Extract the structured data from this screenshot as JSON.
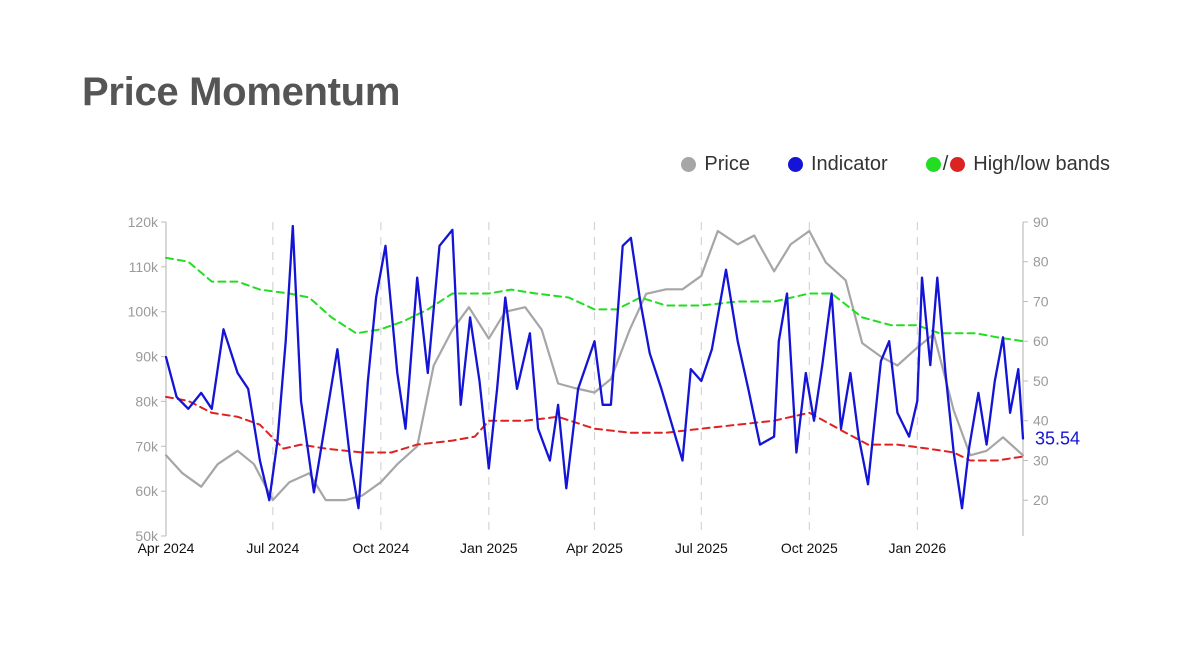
{
  "title": "Price Momentum",
  "legend": {
    "price": "Price",
    "indicator": "Indicator",
    "bands_sep": "/",
    "bands": "High/low bands"
  },
  "colors": {
    "price": "#a6a6a6",
    "indicator": "#1414d6",
    "high_band": "#22dd22",
    "low_band": "#dd2222",
    "title": "#555555"
  },
  "chart_data": {
    "type": "line",
    "x_type": "date",
    "x_range": [
      "2024-04-01",
      "2026-04-01"
    ],
    "x_ticks": [
      {
        "date": "2024-04-01",
        "label": "Apr 2024"
      },
      {
        "date": "2024-07-01",
        "label": "Jul 2024"
      },
      {
        "date": "2024-10-01",
        "label": "Oct 2024"
      },
      {
        "date": "2025-01-01",
        "label": "Jan 2025"
      },
      {
        "date": "2025-04-01",
        "label": "Apr 2025"
      },
      {
        "date": "2025-07-01",
        "label": "Jul 2025"
      },
      {
        "date": "2025-10-01",
        "label": "Oct 2025"
      },
      {
        "date": "2026-01-01",
        "label": "Jan 2026"
      }
    ],
    "y_left": {
      "range": [
        50000,
        120000
      ],
      "ticks": [
        {
          "value": 50000,
          "label": "50k"
        },
        {
          "value": 60000,
          "label": "60k"
        },
        {
          "value": 70000,
          "label": "70k"
        },
        {
          "value": 80000,
          "label": "80k"
        },
        {
          "value": 90000,
          "label": "90k"
        },
        {
          "value": 100000,
          "label": "100k"
        },
        {
          "value": 110000,
          "label": "110k"
        },
        {
          "value": 120000,
          "label": "120k"
        }
      ]
    },
    "y_right": {
      "range": [
        11,
        90
      ],
      "ticks": [
        {
          "value": 20,
          "label": "20"
        },
        {
          "value": 30,
          "label": "30"
        },
        {
          "value": 40,
          "label": "40"
        },
        {
          "value": 50,
          "label": "50"
        },
        {
          "value": 60,
          "label": "60"
        },
        {
          "value": 70,
          "label": "70"
        },
        {
          "value": 80,
          "label": "80"
        },
        {
          "value": 90,
          "label": "90"
        }
      ]
    },
    "vertical_grid": "dashed at x ticks",
    "series": [
      {
        "name": "Price",
        "axis": "left",
        "points": [
          [
            "2024-04-01",
            68000
          ],
          [
            "2024-04-15",
            64000
          ],
          [
            "2024-05-01",
            61000
          ],
          [
            "2024-05-15",
            66000
          ],
          [
            "2024-06-01",
            69000
          ],
          [
            "2024-06-15",
            66000
          ],
          [
            "2024-07-01",
            58000
          ],
          [
            "2024-07-15",
            62000
          ],
          [
            "2024-08-01",
            64000
          ],
          [
            "2024-08-15",
            58000
          ],
          [
            "2024-09-01",
            58000
          ],
          [
            "2024-09-15",
            59000
          ],
          [
            "2024-10-01",
            62000
          ],
          [
            "2024-10-15",
            66000
          ],
          [
            "2024-11-01",
            70000
          ],
          [
            "2024-11-15",
            88000
          ],
          [
            "2024-12-01",
            96000
          ],
          [
            "2024-12-15",
            101000
          ],
          [
            "2025-01-01",
            94000
          ],
          [
            "2025-01-15",
            100000
          ],
          [
            "2025-02-01",
            101000
          ],
          [
            "2025-02-15",
            96000
          ],
          [
            "2025-03-01",
            84000
          ],
          [
            "2025-03-15",
            83000
          ],
          [
            "2025-04-01",
            82000
          ],
          [
            "2025-04-15",
            85000
          ],
          [
            "2025-05-01",
            96000
          ],
          [
            "2025-05-15",
            104000
          ],
          [
            "2025-06-01",
            105000
          ],
          [
            "2025-06-15",
            105000
          ],
          [
            "2025-07-01",
            108000
          ],
          [
            "2025-07-15",
            118000
          ],
          [
            "2025-08-01",
            115000
          ],
          [
            "2025-08-15",
            117000
          ],
          [
            "2025-09-01",
            109000
          ],
          [
            "2025-09-15",
            115000
          ],
          [
            "2025-10-01",
            118000
          ],
          [
            "2025-10-15",
            111000
          ],
          [
            "2025-11-01",
            107000
          ],
          [
            "2025-11-15",
            93000
          ],
          [
            "2025-12-01",
            90000
          ],
          [
            "2025-12-15",
            88000
          ],
          [
            "2026-01-01",
            92000
          ],
          [
            "2026-01-15",
            95000
          ],
          [
            "2026-02-01",
            78000
          ],
          [
            "2026-02-15",
            68000
          ],
          [
            "2026-03-01",
            69000
          ],
          [
            "2026-03-15",
            72000
          ],
          [
            "2026-04-01",
            68000
          ]
        ]
      },
      {
        "name": "Indicator",
        "axis": "right",
        "last_value_label": "35.54",
        "points": [
          [
            "2024-04-01",
            56
          ],
          [
            "2024-04-10",
            46
          ],
          [
            "2024-04-20",
            43
          ],
          [
            "2024-05-01",
            47
          ],
          [
            "2024-05-10",
            43
          ],
          [
            "2024-05-20",
            63
          ],
          [
            "2024-06-01",
            52
          ],
          [
            "2024-06-10",
            48
          ],
          [
            "2024-06-20",
            30
          ],
          [
            "2024-06-28",
            20
          ],
          [
            "2024-07-05",
            35
          ],
          [
            "2024-07-12",
            60
          ],
          [
            "2024-07-18",
            89
          ],
          [
            "2024-07-25",
            45
          ],
          [
            "2024-08-05",
            22
          ],
          [
            "2024-08-15",
            40
          ],
          [
            "2024-08-25",
            58
          ],
          [
            "2024-09-05",
            30
          ],
          [
            "2024-09-12",
            18
          ],
          [
            "2024-09-20",
            50
          ],
          [
            "2024-09-27",
            71
          ],
          [
            "2024-10-05",
            84
          ],
          [
            "2024-10-15",
            52
          ],
          [
            "2024-10-22",
            38
          ],
          [
            "2024-11-01",
            76
          ],
          [
            "2024-11-10",
            52
          ],
          [
            "2024-11-20",
            84
          ],
          [
            "2024-12-01",
            88
          ],
          [
            "2024-12-08",
            44
          ],
          [
            "2024-12-16",
            66
          ],
          [
            "2024-12-24",
            50
          ],
          [
            "2025-01-01",
            28
          ],
          [
            "2025-01-08",
            48
          ],
          [
            "2025-01-15",
            71
          ],
          [
            "2025-01-25",
            48
          ],
          [
            "2025-02-05",
            62
          ],
          [
            "2025-02-12",
            38
          ],
          [
            "2025-02-22",
            30
          ],
          [
            "2025-03-01",
            44
          ],
          [
            "2025-03-08",
            23
          ],
          [
            "2025-03-18",
            48
          ],
          [
            "2025-04-01",
            60
          ],
          [
            "2025-04-08",
            44
          ],
          [
            "2025-04-15",
            44
          ],
          [
            "2025-04-25",
            84
          ],
          [
            "2025-05-02",
            86
          ],
          [
            "2025-05-10",
            70
          ],
          [
            "2025-05-18",
            57
          ],
          [
            "2025-05-28",
            48
          ],
          [
            "2025-06-08",
            37
          ],
          [
            "2025-06-15",
            30
          ],
          [
            "2025-06-22",
            53
          ],
          [
            "2025-07-01",
            50
          ],
          [
            "2025-07-10",
            58
          ],
          [
            "2025-07-22",
            78
          ],
          [
            "2025-08-01",
            60
          ],
          [
            "2025-08-10",
            48
          ],
          [
            "2025-08-20",
            34
          ],
          [
            "2025-09-01",
            36
          ],
          [
            "2025-09-05",
            60
          ],
          [
            "2025-09-12",
            72
          ],
          [
            "2025-09-20",
            32
          ],
          [
            "2025-09-28",
            52
          ],
          [
            "2025-10-05",
            40
          ],
          [
            "2025-10-12",
            54
          ],
          [
            "2025-10-20",
            72
          ],
          [
            "2025-10-28",
            38
          ],
          [
            "2025-11-05",
            52
          ],
          [
            "2025-11-12",
            36
          ],
          [
            "2025-11-20",
            24
          ],
          [
            "2025-12-01",
            55
          ],
          [
            "2025-12-08",
            60
          ],
          [
            "2025-12-15",
            42
          ],
          [
            "2025-12-25",
            36
          ],
          [
            "2026-01-01",
            45
          ],
          [
            "2026-01-05",
            76
          ],
          [
            "2026-01-12",
            54
          ],
          [
            "2026-01-18",
            76
          ],
          [
            "2026-01-25",
            52
          ],
          [
            "2026-02-01",
            32
          ],
          [
            "2026-02-08",
            18
          ],
          [
            "2026-02-14",
            33
          ],
          [
            "2026-02-22",
            47
          ],
          [
            "2026-03-01",
            34
          ],
          [
            "2026-03-08",
            50
          ],
          [
            "2026-03-15",
            61
          ],
          [
            "2026-03-21",
            42
          ],
          [
            "2026-03-28",
            53
          ],
          [
            "2026-04-01",
            35.54
          ]
        ]
      },
      {
        "name": "High band",
        "axis": "right",
        "points": [
          [
            "2024-04-01",
            81
          ],
          [
            "2024-04-20",
            80
          ],
          [
            "2024-05-10",
            75
          ],
          [
            "2024-06-01",
            75
          ],
          [
            "2024-06-20",
            73
          ],
          [
            "2024-07-15",
            72
          ],
          [
            "2024-08-01",
            71
          ],
          [
            "2024-08-20",
            66
          ],
          [
            "2024-09-10",
            62
          ],
          [
            "2024-10-01",
            63
          ],
          [
            "2024-10-20",
            65
          ],
          [
            "2024-11-10",
            68
          ],
          [
            "2024-12-01",
            72
          ],
          [
            "2025-01-01",
            72
          ],
          [
            "2025-01-20",
            73
          ],
          [
            "2025-02-10",
            72
          ],
          [
            "2025-03-10",
            71
          ],
          [
            "2025-04-01",
            68
          ],
          [
            "2025-04-20",
            68
          ],
          [
            "2025-05-10",
            71
          ],
          [
            "2025-06-01",
            69
          ],
          [
            "2025-07-01",
            69
          ],
          [
            "2025-08-01",
            70
          ],
          [
            "2025-09-01",
            70
          ],
          [
            "2025-10-01",
            72
          ],
          [
            "2025-10-20",
            72
          ],
          [
            "2025-11-15",
            66
          ],
          [
            "2025-12-10",
            64
          ],
          [
            "2026-01-01",
            64
          ],
          [
            "2026-01-20",
            62
          ],
          [
            "2026-02-20",
            62
          ],
          [
            "2026-03-10",
            61
          ],
          [
            "2026-04-01",
            60
          ]
        ]
      },
      {
        "name": "Low band",
        "axis": "right",
        "points": [
          [
            "2024-04-01",
            46
          ],
          [
            "2024-04-20",
            45
          ],
          [
            "2024-05-10",
            42
          ],
          [
            "2024-06-01",
            41
          ],
          [
            "2024-06-20",
            39
          ],
          [
            "2024-07-10",
            33
          ],
          [
            "2024-07-25",
            34
          ],
          [
            "2024-08-15",
            33
          ],
          [
            "2024-09-15",
            32
          ],
          [
            "2024-10-10",
            32
          ],
          [
            "2024-11-01",
            34
          ],
          [
            "2024-12-01",
            35
          ],
          [
            "2024-12-20",
            36
          ],
          [
            "2025-01-01",
            40
          ],
          [
            "2025-02-01",
            40
          ],
          [
            "2025-03-01",
            41
          ],
          [
            "2025-04-01",
            38
          ],
          [
            "2025-05-01",
            37
          ],
          [
            "2025-06-01",
            37
          ],
          [
            "2025-07-01",
            38
          ],
          [
            "2025-08-01",
            39
          ],
          [
            "2025-09-01",
            40
          ],
          [
            "2025-10-01",
            42
          ],
          [
            "2025-11-01",
            37
          ],
          [
            "2025-11-20",
            34
          ],
          [
            "2025-12-15",
            34
          ],
          [
            "2026-01-10",
            33
          ],
          [
            "2026-02-01",
            32
          ],
          [
            "2026-02-15",
            30
          ],
          [
            "2026-03-10",
            30
          ],
          [
            "2026-04-01",
            31
          ]
        ]
      }
    ]
  }
}
